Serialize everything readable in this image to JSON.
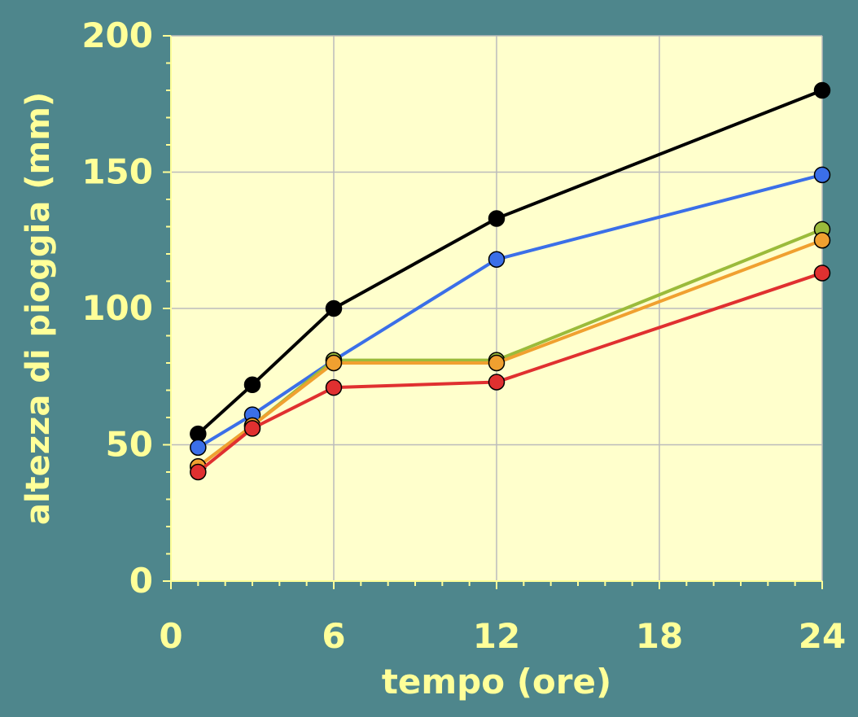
{
  "chart_data": {
    "type": "line",
    "title": "",
    "xlabel": "tempo (ore)",
    "ylabel": "altezza di pioggia (mm)",
    "xlim": [
      0,
      24
    ],
    "ylim": [
      0,
      200
    ],
    "x_ticks": [
      0,
      6,
      12,
      18,
      24
    ],
    "y_ticks": [
      0,
      50,
      100,
      150,
      200
    ],
    "x_minor_step": 1,
    "y_minor_step": 10,
    "grid": true,
    "colors": {
      "background": "#4e868c",
      "plot_area": "#ffffcc",
      "text": "#ffff99",
      "grid": "#bbbbbb"
    },
    "x": [
      1,
      3,
      6,
      12,
      24
    ],
    "series": [
      {
        "color": "#000000",
        "marker_color": "#000000",
        "values": [
          54,
          72,
          100,
          133,
          180
        ]
      },
      {
        "color": "#3b6fe8",
        "marker_color": "#3b6fe8",
        "values": [
          49,
          61,
          81,
          118,
          149
        ]
      },
      {
        "color": "#9bbb3b",
        "marker_color": "#9bbb3b",
        "values": [
          42,
          57,
          81,
          81,
          129
        ]
      },
      {
        "color": "#f0a030",
        "marker_color": "#f0a030",
        "values": [
          42,
          57,
          80,
          80,
          125
        ]
      },
      {
        "color": "#e03030",
        "marker_color": "#e03030",
        "values": [
          40,
          56,
          71,
          73,
          113
        ]
      }
    ]
  }
}
